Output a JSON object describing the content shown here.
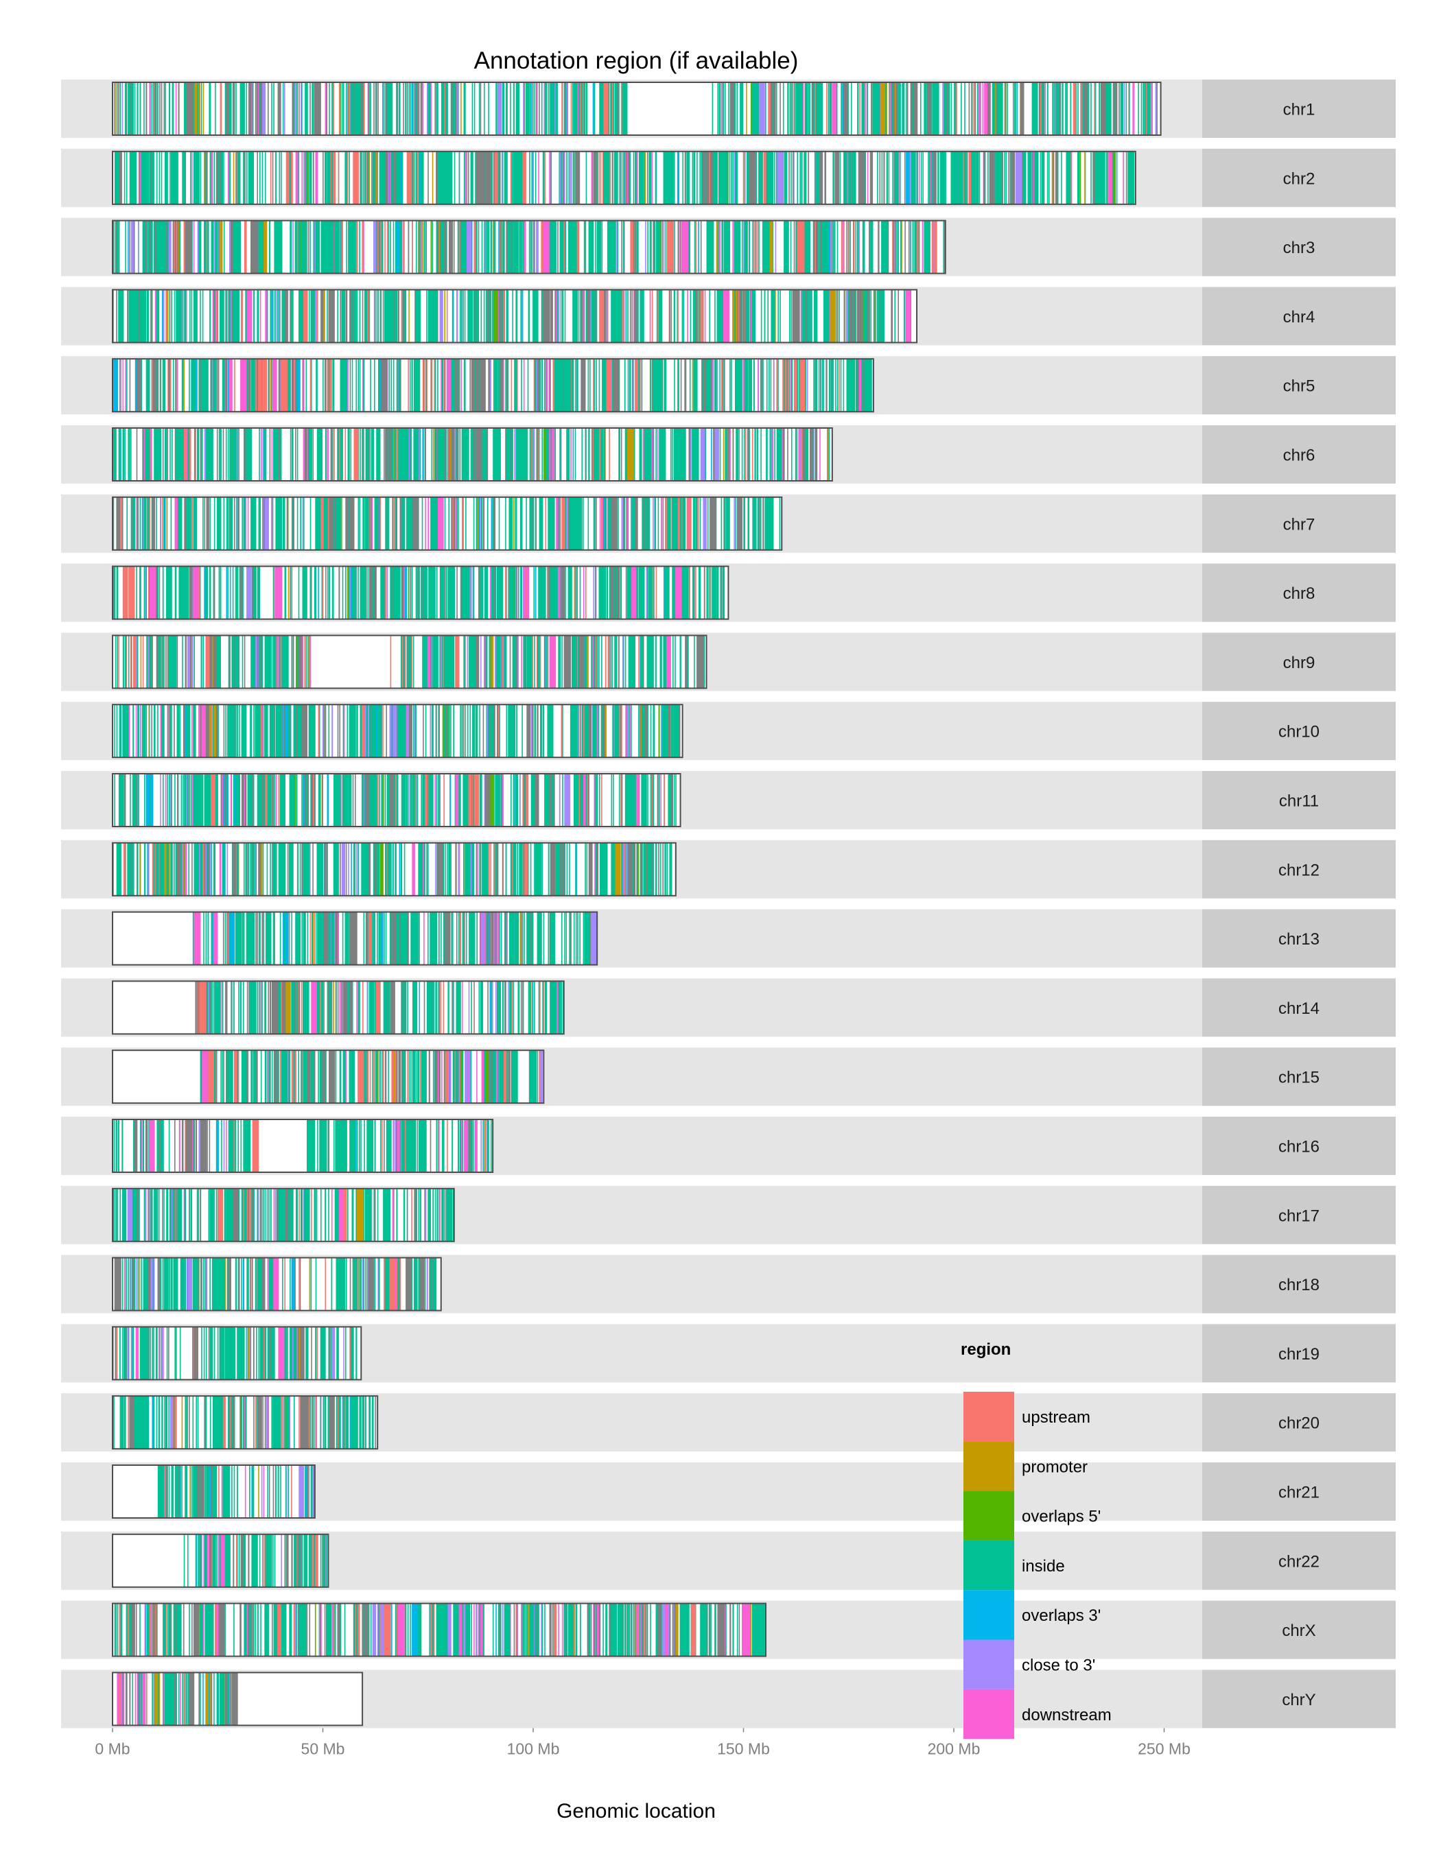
{
  "chart_data": {
    "type": "bar",
    "title": "Annotation region (if available)",
    "xlabel": "Genomic location",
    "ylabel": "",
    "x_unit": "Mb",
    "xlim": [
      0,
      260
    ],
    "x_ticks": [
      {
        "value": 0,
        "label": "0 Mb"
      },
      {
        "value": 50,
        "label": "50 Mb"
      },
      {
        "value": 100,
        "label": "100 Mb"
      },
      {
        "value": 150,
        "label": "150 Mb"
      },
      {
        "value": 200,
        "label": "200 Mb"
      },
      {
        "value": 250,
        "label": "250 Mb"
      }
    ],
    "grid": false,
    "legend": {
      "title": "region",
      "placement": "bottom-right, inside plot",
      "entries": [
        {
          "label": "upstream",
          "color": "#F8766D"
        },
        {
          "label": "promoter",
          "color": "#C49A00"
        },
        {
          "label": "overlaps 5'",
          "color": "#53B400"
        },
        {
          "label": "inside",
          "color": "#00C094"
        },
        {
          "label": "overlaps 3'",
          "color": "#00B6EB"
        },
        {
          "label": "close to 3'",
          "color": "#A58AFF"
        },
        {
          "label": "downstream",
          "color": "#FB61D7"
        }
      ]
    },
    "chromosomes": [
      {
        "name": "chr1",
        "length": 249.2,
        "gaps": [
          [
            121.5,
            142.5
          ]
        ]
      },
      {
        "name": "chr2",
        "length": 243.2,
        "gaps": []
      },
      {
        "name": "chr3",
        "length": 198.0,
        "gaps": []
      },
      {
        "name": "chr4",
        "length": 191.2,
        "gaps": []
      },
      {
        "name": "chr5",
        "length": 180.9,
        "gaps": []
      },
      {
        "name": "chr6",
        "length": 171.1,
        "gaps": []
      },
      {
        "name": "chr7",
        "length": 159.1,
        "gaps": []
      },
      {
        "name": "chr8",
        "length": 146.4,
        "gaps": []
      },
      {
        "name": "chr9",
        "length": 141.2,
        "gaps": [
          [
            47,
            66
          ]
        ]
      },
      {
        "name": "chr10",
        "length": 135.5,
        "gaps": []
      },
      {
        "name": "chr11",
        "length": 135.0,
        "gaps": []
      },
      {
        "name": "chr12",
        "length": 133.9,
        "gaps": []
      },
      {
        "name": "chr13",
        "length": 115.2,
        "gaps": [
          [
            0,
            19
          ]
        ]
      },
      {
        "name": "chr14",
        "length": 107.3,
        "gaps": [
          [
            0,
            19.5
          ]
        ]
      },
      {
        "name": "chr15",
        "length": 102.5,
        "gaps": [
          [
            0,
            20.5
          ]
        ]
      },
      {
        "name": "chr16",
        "length": 90.4,
        "gaps": [
          [
            34,
            46
          ]
        ]
      },
      {
        "name": "chr17",
        "length": 81.2,
        "gaps": []
      },
      {
        "name": "chr18",
        "length": 78.1,
        "gaps": []
      },
      {
        "name": "chr19",
        "length": 59.1,
        "gaps": []
      },
      {
        "name": "chr20",
        "length": 63.0,
        "gaps": []
      },
      {
        "name": "chr21",
        "length": 48.1,
        "gaps": [
          [
            0,
            10
          ]
        ]
      },
      {
        "name": "chr22",
        "length": 51.3,
        "gaps": [
          [
            0,
            16.5
          ]
        ]
      },
      {
        "name": "chrX",
        "length": 155.3,
        "gaps": []
      },
      {
        "name": "chrY",
        "length": 59.4,
        "gaps": [
          [
            29,
            59.4
          ]
        ]
      }
    ]
  }
}
